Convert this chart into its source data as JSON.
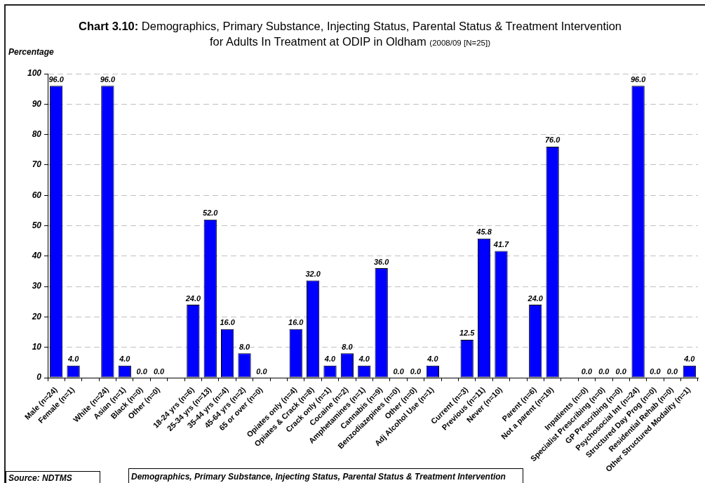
{
  "chart_data": {
    "type": "bar",
    "title": "Chart 3.10: Demographics, Primary Substance, Injecting Status, Parental Status & Treatment Intervention\nfor Adults In Treatment at ODIP in Oldham (2008/09 [N=25])",
    "ylabel": "Percentage",
    "annotations": [
      "Source: NDTMS",
      "Demographics, Primary Substance, Injecting Status, Parental Status & Treatment Intervention"
    ],
    "categories": [
      "Male (n=24)",
      "Female (n=1)",
      null,
      "White (n=24)",
      "Asian (n=1)",
      "Black (n=0)",
      "Other (n=0)",
      null,
      "18-24 yrs (n=6)",
      "25-34 yrs (n=13)",
      "35-44 yrs (n=4)",
      "45-64 yrs (n=2)",
      "65 or over (n=0)",
      null,
      "Opiates only (n=4)",
      "Opiates & Crack (n=8)",
      "Crack only (n=1)",
      "Cocaine (n=2)",
      "Amphetamines (n=1)",
      "Cannabis (n=9)",
      "Benzodiazepines (n=0)",
      "Other (n=0)",
      "Adj Alcohol Use (n=1)",
      null,
      "Current (n=3)",
      "Previous (n=11)",
      "Never (n=10)",
      null,
      "Parent (n=6)",
      "Not a parent (n=19)",
      null,
      "Inpatients (n=0)",
      "Specialist Prescribing (n=0)",
      "GP Prescribing (n=0)",
      "Psychosocial Int (n=24)",
      "Structured Day Prog (n=0)",
      "Residential Rehab (n=0)",
      "Other Structured Modality (n=1)"
    ],
    "values": [
      96.0,
      4.0,
      null,
      96.0,
      4.0,
      0.0,
      0.0,
      null,
      24.0,
      52.0,
      16.0,
      8.0,
      0.0,
      null,
      16.0,
      32.0,
      4.0,
      8.0,
      4.0,
      36.0,
      0.0,
      0.0,
      4.0,
      null,
      12.5,
      45.8,
      41.7,
      null,
      24.0,
      76.0,
      null,
      0.0,
      0.0,
      0.0,
      96.0,
      0.0,
      0.0,
      4.0
    ],
    "value_labels": [
      "96.0",
      "4.0",
      null,
      "96.0",
      "4.0",
      "0.0",
      "0.0",
      null,
      "24.0",
      "52.0",
      "16.0",
      "8.0",
      "0.0",
      null,
      "16.0",
      "32.0",
      "4.0",
      "8.0",
      "4.0",
      "36.0",
      "0.0",
      "0.0",
      "4.0",
      null,
      "12.5",
      "45.8",
      "41.7",
      null,
      "24.0",
      "76.0",
      null,
      "0.0",
      "0.0",
      "0.0",
      "96.0",
      "0.0",
      "0.0",
      "4.0"
    ],
    "color": "#0000ff",
    "ylim": [
      0,
      100
    ],
    "yticks": [
      0,
      10,
      20,
      30,
      40,
      50,
      60,
      70,
      80,
      90,
      100
    ],
    "grid": "y"
  }
}
